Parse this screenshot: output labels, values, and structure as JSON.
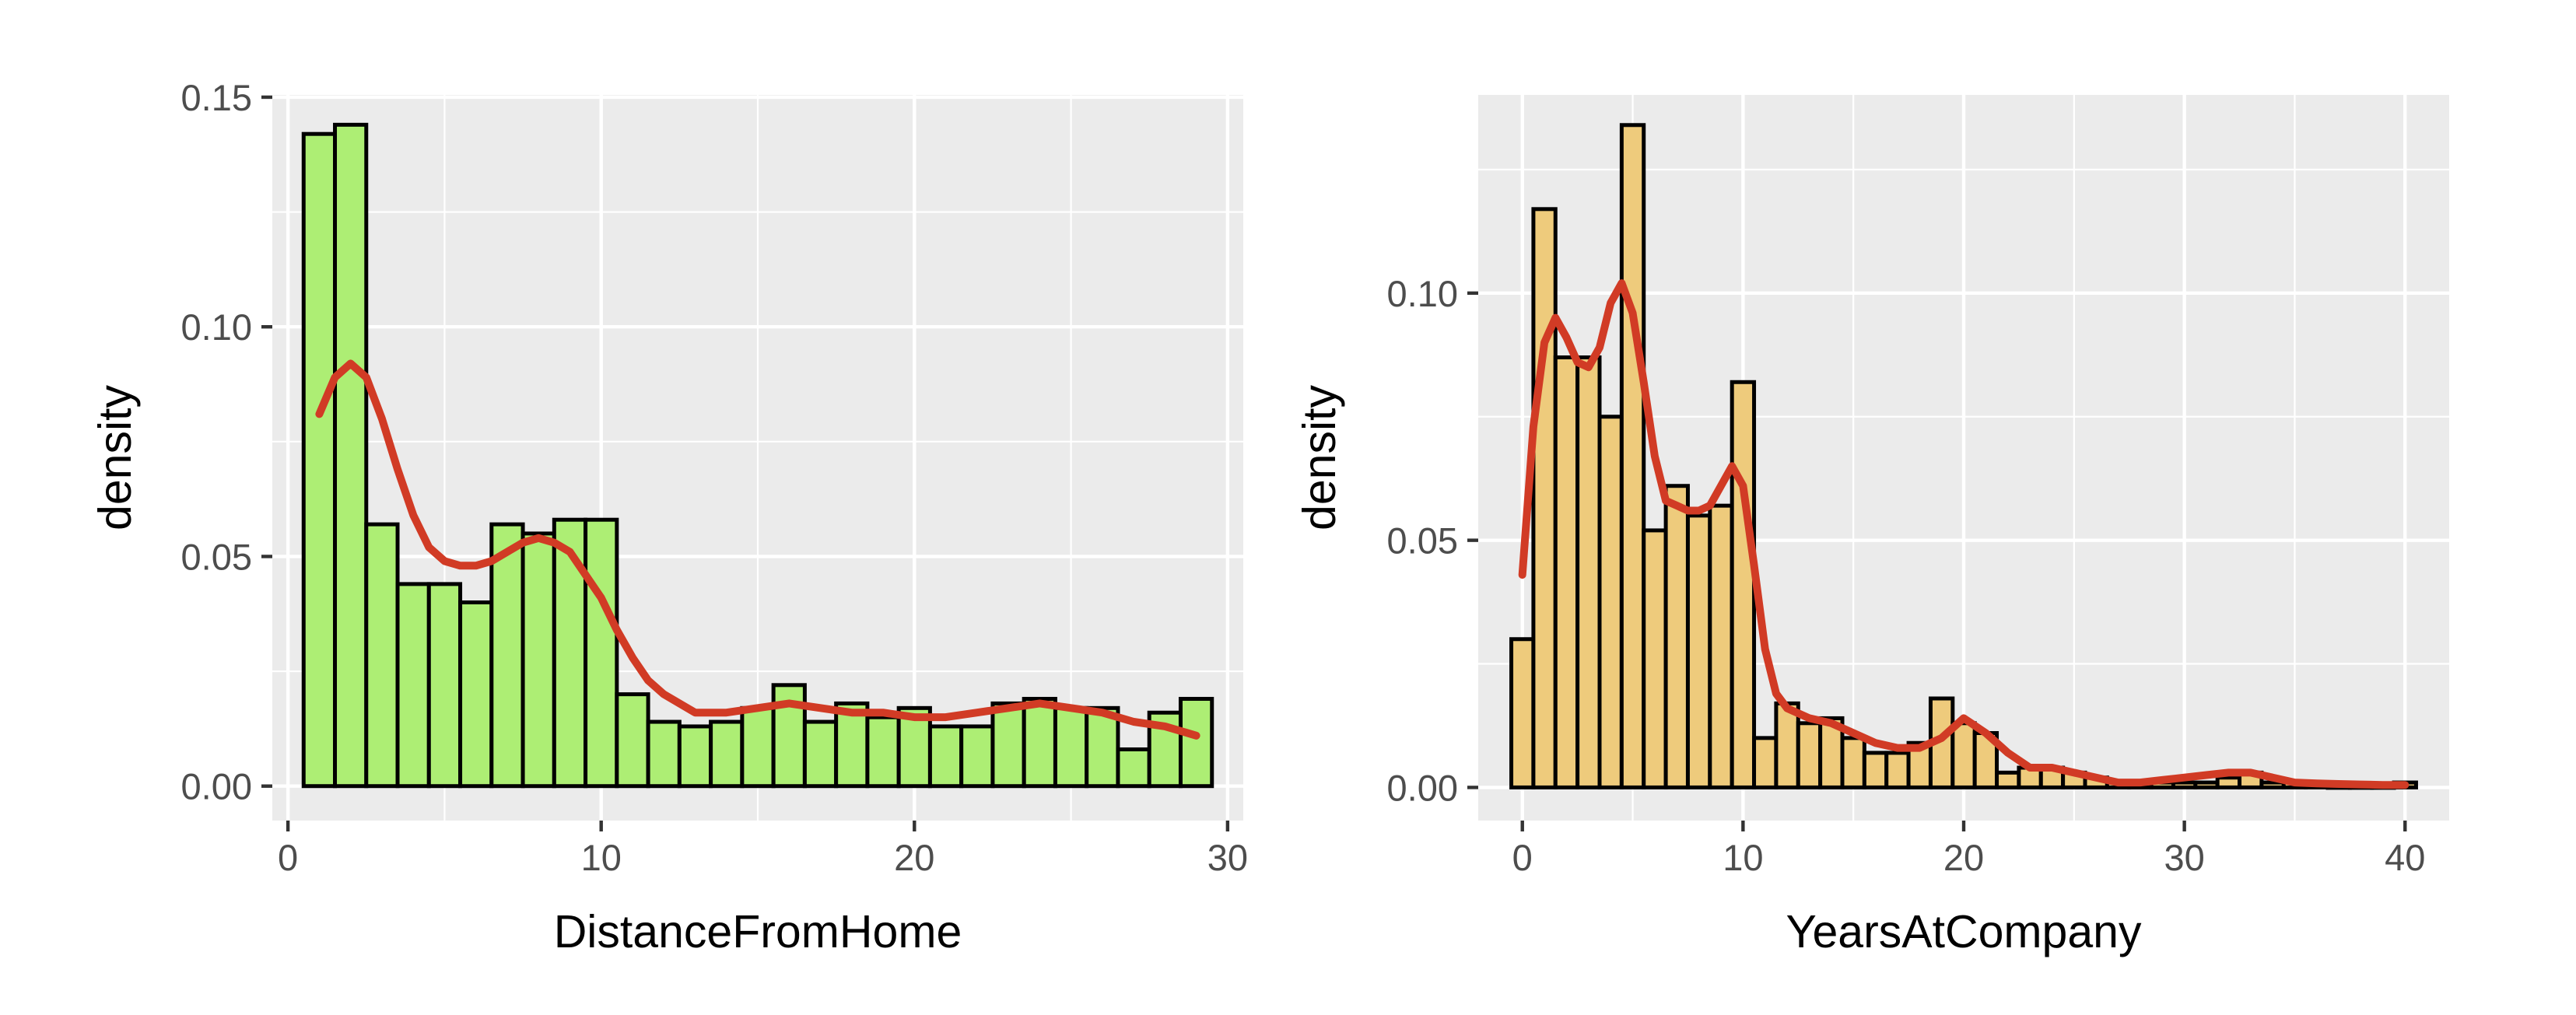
{
  "chart_data": [
    {
      "type": "histogram",
      "title": "",
      "xlabel": "DistanceFromHome",
      "ylabel": "density",
      "xlim": [
        -0.5,
        30.5
      ],
      "ylim": [
        -0.0075,
        0.1505
      ],
      "x_ticks": [
        0,
        10,
        20,
        30
      ],
      "x_tick_labels": [
        "0",
        "10",
        "20",
        "30"
      ],
      "y_ticks": [
        0.0,
        0.05,
        0.1,
        0.15
      ],
      "y_tick_labels": [
        "0.00",
        "0.05",
        "0.10",
        "0.15"
      ],
      "grid": true,
      "legend": "none",
      "bar_color": "#ADEE74",
      "bar_edge_color": "#000000",
      "curve_color": "#D13B25",
      "panel_color": "#EBEBEB",
      "bins": {
        "x_start": [
          0.5,
          1.5,
          2.5,
          3.5,
          4.5,
          5.5,
          6.5,
          7.5,
          8.5,
          9.5,
          10.5,
          11.5,
          12.5,
          13.5,
          14.5,
          15.5,
          16.5,
          17.5,
          18.5,
          19.5,
          20.5,
          21.5,
          22.5,
          23.5,
          24.5,
          25.5,
          26.5,
          27.5,
          28.5
        ],
        "x_end": [
          1.5,
          2.5,
          3.5,
          4.5,
          5.5,
          6.5,
          7.5,
          8.5,
          9.5,
          10.5,
          11.5,
          12.5,
          13.5,
          14.5,
          15.5,
          16.5,
          17.5,
          18.5,
          19.5,
          20.5,
          21.5,
          22.5,
          23.5,
          24.5,
          25.5,
          26.5,
          27.5,
          28.5,
          29.5
        ],
        "density": [
          0.142,
          0.144,
          0.057,
          0.044,
          0.044,
          0.04,
          0.057,
          0.055,
          0.058,
          0.058,
          0.02,
          0.014,
          0.013,
          0.014,
          0.017,
          0.022,
          0.014,
          0.018,
          0.015,
          0.017,
          0.013,
          0.013,
          0.018,
          0.019,
          0.017,
          0.017,
          0.008,
          0.016,
          0.019
        ]
      },
      "density_curve": {
        "x": [
          1,
          1.5,
          2,
          2.5,
          3,
          3.5,
          4,
          4.5,
          5,
          5.5,
          6,
          6.5,
          7,
          7.5,
          8,
          8.5,
          9,
          9.5,
          10,
          10.5,
          11,
          11.5,
          12,
          12.5,
          13,
          13.5,
          14,
          15,
          16,
          17,
          18,
          19,
          20,
          21,
          22,
          23,
          24,
          25,
          26,
          27,
          28,
          29
        ],
        "y": [
          0.081,
          0.089,
          0.092,
          0.089,
          0.08,
          0.069,
          0.059,
          0.052,
          0.049,
          0.048,
          0.048,
          0.049,
          0.051,
          0.053,
          0.054,
          0.053,
          0.051,
          0.046,
          0.041,
          0.034,
          0.028,
          0.023,
          0.02,
          0.018,
          0.016,
          0.016,
          0.016,
          0.017,
          0.018,
          0.017,
          0.016,
          0.016,
          0.015,
          0.015,
          0.016,
          0.017,
          0.018,
          0.017,
          0.016,
          0.014,
          0.013,
          0.011
        ]
      }
    },
    {
      "type": "histogram",
      "title": "",
      "xlabel": "YearsAtCompany",
      "ylabel": "density",
      "xlim": [
        -2.0,
        42.0
      ],
      "ylim": [
        -0.0067,
        0.1401
      ],
      "x_ticks": [
        0,
        10,
        20,
        30,
        40
      ],
      "x_tick_labels": [
        "0",
        "10",
        "20",
        "30",
        "40"
      ],
      "y_ticks": [
        0.0,
        0.05,
        0.1
      ],
      "y_tick_labels": [
        "0.00",
        "0.05",
        "0.10"
      ],
      "grid": true,
      "legend": "none",
      "bar_color": "#EECB7C",
      "bar_edge_color": "#000000",
      "curve_color": "#D13B25",
      "panel_color": "#EBEBEB",
      "bins": {
        "x_start": [
          -0.5,
          0.5,
          1.5,
          2.5,
          3.5,
          4.5,
          5.5,
          6.5,
          7.5,
          8.5,
          9.5,
          10.5,
          11.5,
          12.5,
          13.5,
          14.5,
          15.5,
          16.5,
          17.5,
          18.5,
          19.5,
          20.5,
          21.5,
          22.5,
          23.5,
          24.5,
          25.5,
          26.5,
          27.5,
          28.5,
          29.5,
          30.5,
          31.5,
          32.5,
          33.5,
          34.5,
          35.5,
          36.5,
          37.5,
          38.5,
          39.5
        ],
        "x_end": [
          0.5,
          1.5,
          2.5,
          3.5,
          4.5,
          5.5,
          6.5,
          7.5,
          8.5,
          9.5,
          10.5,
          11.5,
          12.5,
          13.5,
          14.5,
          15.5,
          16.5,
          17.5,
          18.5,
          19.5,
          20.5,
          21.5,
          22.5,
          23.5,
          24.5,
          25.5,
          26.5,
          27.5,
          28.5,
          29.5,
          30.5,
          31.5,
          32.5,
          33.5,
          34.5,
          35.5,
          36.5,
          37.5,
          38.5,
          39.5,
          40.5
        ],
        "density": [
          0.03,
          0.117,
          0.087,
          0.087,
          0.075,
          0.134,
          0.052,
          0.061,
          0.055,
          0.057,
          0.082,
          0.01,
          0.017,
          0.013,
          0.014,
          0.01,
          0.007,
          0.007,
          0.009,
          0.018,
          0.013,
          0.011,
          0.003,
          0.004,
          0.004,
          0.003,
          0.002,
          0.001,
          0.001,
          0.001,
          0.001,
          0.001,
          0.002,
          0.003,
          0.001,
          0.001,
          0.001,
          0.0,
          0.0,
          0.0,
          0.001
        ]
      },
      "density_curve": {
        "x": [
          0,
          0.5,
          1,
          1.5,
          2,
          2.5,
          3,
          3.5,
          4,
          4.5,
          5,
          5.5,
          6,
          6.5,
          7,
          7.5,
          8,
          8.5,
          9,
          9.5,
          10,
          10.5,
          11,
          11.5,
          12,
          13,
          14,
          15,
          16,
          17,
          18,
          19,
          20,
          21,
          22,
          23,
          24,
          25,
          26,
          27,
          28,
          29,
          30,
          31,
          32,
          33,
          34,
          35,
          36,
          37,
          38,
          39,
          40
        ],
        "y": [
          0.043,
          0.073,
          0.09,
          0.095,
          0.091,
          0.086,
          0.085,
          0.089,
          0.098,
          0.102,
          0.096,
          0.082,
          0.067,
          0.058,
          0.057,
          0.056,
          0.056,
          0.057,
          0.061,
          0.065,
          0.061,
          0.045,
          0.028,
          0.019,
          0.016,
          0.014,
          0.013,
          0.011,
          0.009,
          0.008,
          0.008,
          0.01,
          0.014,
          0.011,
          0.007,
          0.004,
          0.004,
          0.003,
          0.002,
          0.001,
          0.001,
          0.0015,
          0.002,
          0.0025,
          0.003,
          0.003,
          0.002,
          0.001,
          0.0008,
          0.0007,
          0.0006,
          0.0005,
          0.0005
        ]
      }
    }
  ]
}
